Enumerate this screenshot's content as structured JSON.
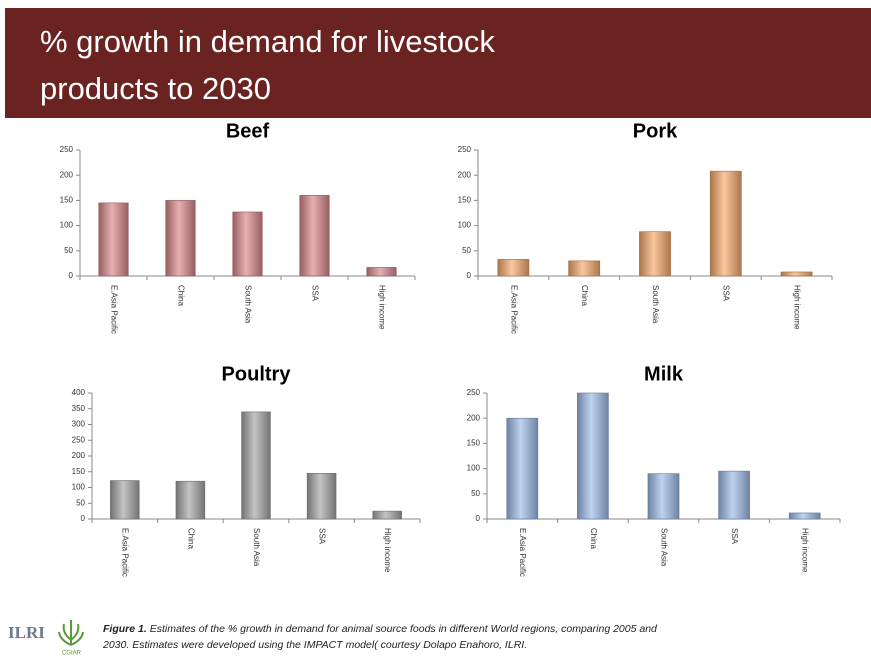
{
  "title_lines": [
    "% growth in demand for livestock",
    "products to 2030"
  ],
  "chart_data": [
    {
      "type": "bar",
      "title": "Beef",
      "categories": [
        "E.Asia Pacific",
        "China",
        "South Asia",
        "SSA",
        "High income"
      ],
      "values": [
        145,
        150,
        127,
        160,
        17
      ],
      "color": "#d9868a",
      "ylim": [
        0,
        250
      ],
      "yticks": [
        0,
        50,
        100,
        150,
        200,
        250
      ]
    },
    {
      "type": "bar",
      "title": "Pork",
      "categories": [
        "E.Asia Pacific",
        "China",
        "South Asia",
        "SSA",
        "High income"
      ],
      "values": [
        33,
        30,
        88,
        208,
        8
      ],
      "color": "#f5a96b",
      "ylim": [
        0,
        250
      ],
      "yticks": [
        0,
        50,
        100,
        150,
        200,
        250
      ]
    },
    {
      "type": "bar",
      "title": "Poultry",
      "categories": [
        "E.Asia Pacific",
        "China",
        "South Asia",
        "SSA",
        "High income"
      ],
      "values": [
        122,
        120,
        340,
        145,
        25
      ],
      "color": "#a4a4a4",
      "ylim": [
        0,
        400
      ],
      "yticks": [
        0,
        50,
        100,
        150,
        200,
        250,
        300,
        350,
        400
      ]
    },
    {
      "type": "bar",
      "title": "Milk",
      "categories": [
        "E.Asia Pacific",
        "China",
        "South Asia",
        "SSA",
        "High income"
      ],
      "values": [
        200,
        250,
        90,
        95,
        12
      ],
      "color": "#9bbbe6",
      "ylim": [
        0,
        250
      ],
      "yticks": [
        0,
        50,
        100,
        150,
        200,
        250
      ]
    }
  ],
  "caption": {
    "label": "Figure 1.",
    "lines": [
      "Estimates of the % growth  in demand for animal source foods in different World regions, comparing 2005 and",
      "2030.  Estimates were developed using the IMPACT model( courtesy Dolapo Enahoro, ILRI."
    ]
  },
  "logos": [
    "ILRI",
    "CGIAR"
  ]
}
